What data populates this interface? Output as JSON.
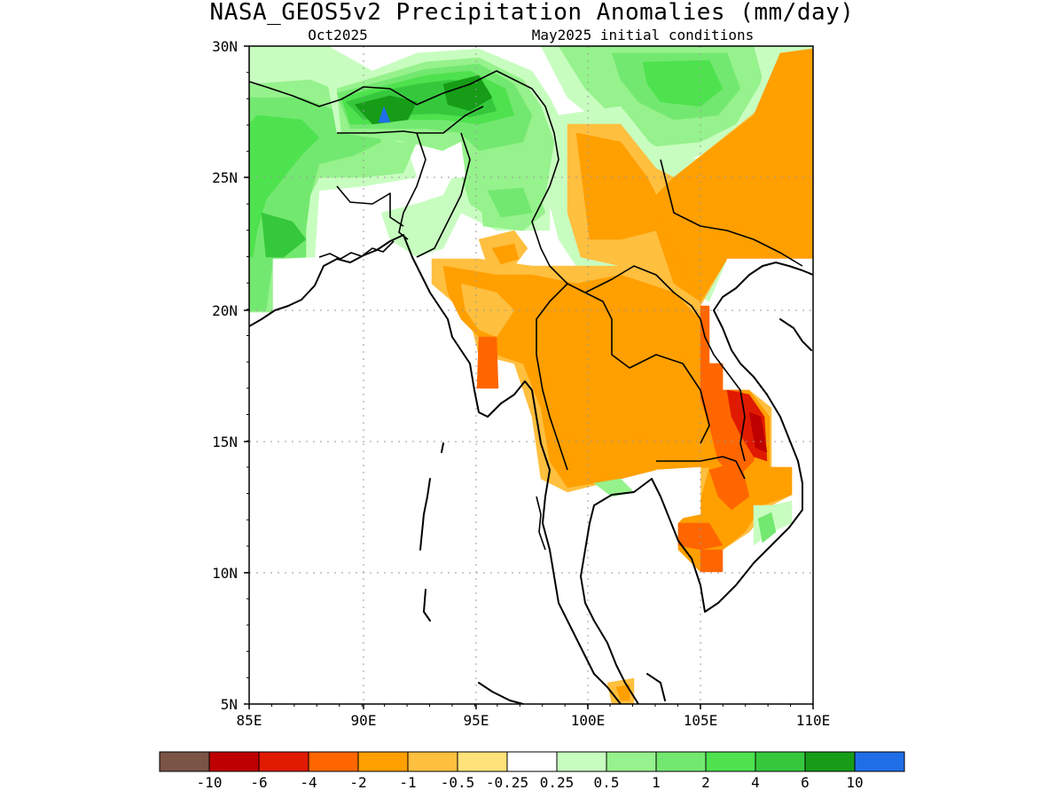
{
  "title": "NASA_GEOS5v2 Precipitation Anomalies (mm/day)",
  "subtitle_left": "Oct2025",
  "subtitle_right": "May2025 initial conditions",
  "lat_ticks": [
    "30N",
    "25N",
    "20N",
    "15N",
    "10N",
    "5N"
  ],
  "lon_ticks": [
    "85E",
    "90E",
    "95E",
    "100E",
    "105E",
    "110E"
  ],
  "colors": {
    "m10": "#7a5445",
    "m6": "#bf0000",
    "m4": "#e01a00",
    "m2": "#ff6600",
    "m1": "#ff9f00",
    "m05": "#ffbf3f",
    "m025": "#ffe27a",
    "zero": "#ffffff",
    "p025": "#c8fdc0",
    "p05": "#96f28c",
    "p1": "#73e870",
    "p2": "#4ee24e",
    "p4": "#36c83c",
    "p6": "#169c17",
    "p10": "#1f6ee8"
  },
  "colorbar": {
    "colors": [
      "#7a5445",
      "#bf0000",
      "#e01a00",
      "#ff6600",
      "#ff9f00",
      "#ffbf3f",
      "#ffe27a",
      "#ffffff",
      "#c8fdc0",
      "#96f28c",
      "#73e870",
      "#4ee24e",
      "#36c83c",
      "#169c17",
      "#1f6ee8"
    ],
    "labels": [
      "-10",
      "-6",
      "-4",
      "-2",
      "-1",
      "-0.5",
      "-0.25",
      "0.25",
      "0.5",
      "1",
      "2",
      "4",
      "6",
      "10"
    ]
  }
}
